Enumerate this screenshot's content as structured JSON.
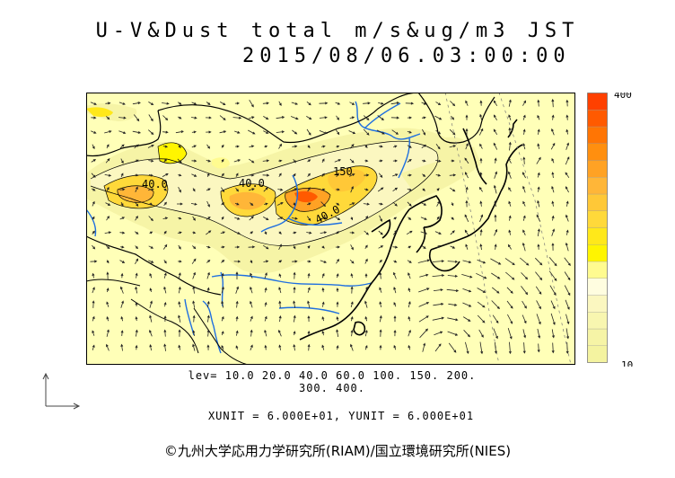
{
  "header": {
    "title": "U-V&Dust total m/s&ug/m3 JST",
    "datetime": "2015/08/06.03:00:00"
  },
  "map": {
    "contour_labels": [
      "40.0",
      "40.0",
      "150",
      "40.0"
    ],
    "colors": {
      "background": "#ffffb8",
      "coast": "#000000",
      "rivers": "#1f6fe0",
      "border": "#000000"
    }
  },
  "colorbar": {
    "max_label": "400",
    "min_label": "10",
    "colors": [
      "#f4f3a0",
      "#f6f4a6",
      "#f8f6b0",
      "#fbf7c0",
      "#fffde0",
      "#fffb90",
      "#fff500",
      "#ffe81a",
      "#ffd93a",
      "#ffc837",
      "#ffb638",
      "#ffa224",
      "#ff8f0f",
      "#ff7504",
      "#ff5a00",
      "#ff4000"
    ]
  },
  "legend": {
    "levels_line1": "lev= 10.0 20.0 40.0 60.0 100. 150. 200.",
    "levels_line2": "300. 400.",
    "units": "XUNIT = 6.000E+01, YUNIT = 6.000E+01"
  },
  "footer": {
    "copyright": "©九州大学応用力学研究所(RIAM)/国立環境研究所(NIES)"
  }
}
